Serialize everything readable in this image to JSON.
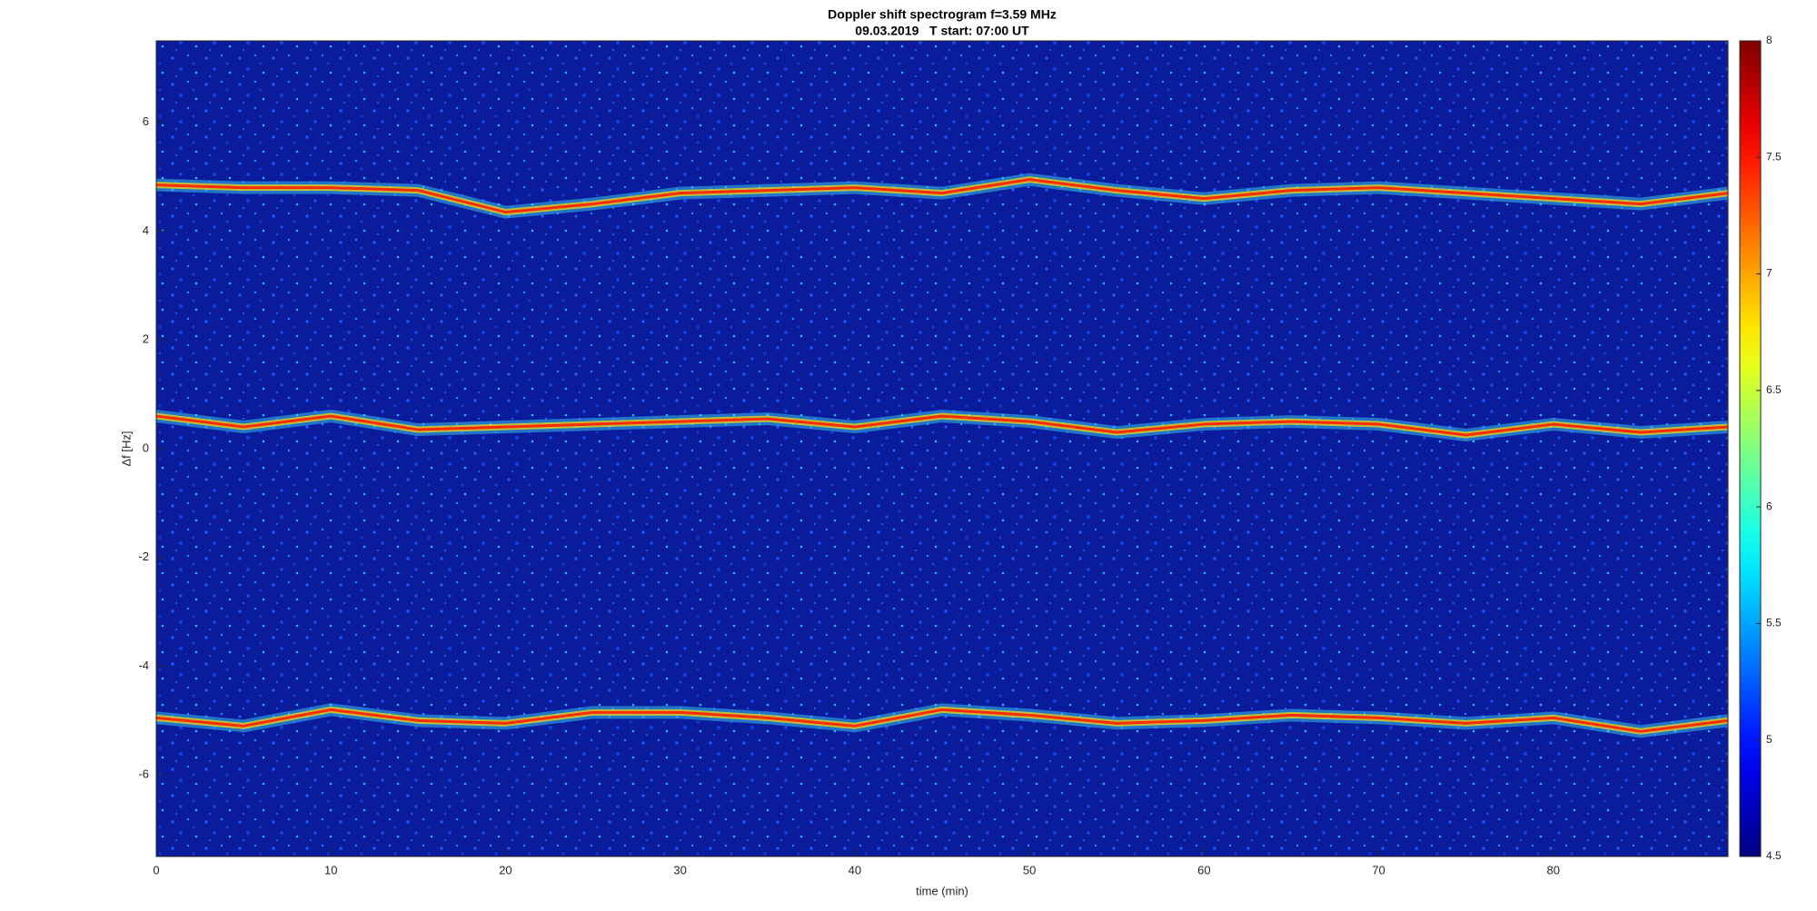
{
  "chart_data": {
    "type": "spectrogram",
    "title": "Doppler shift spectrogram f=3.59 MHz",
    "subtitle": "09.03.2019   T start: 07:00 UT",
    "xlabel": "time (min)",
    "ylabel": "Δf [Hz]",
    "x": [
      0,
      5,
      10,
      15,
      20,
      25,
      30,
      35,
      40,
      45,
      50,
      55,
      60,
      65,
      70,
      75,
      80,
      85,
      90
    ],
    "series": [
      {
        "color": "#ff2a00",
        "values": [
          4.85,
          4.8,
          4.8,
          4.75,
          4.35,
          4.5,
          4.7,
          4.75,
          4.8,
          4.7,
          4.95,
          4.75,
          4.6,
          4.75,
          4.8,
          4.7,
          4.6,
          4.5,
          4.7
        ]
      },
      {
        "color": "#ff2a00",
        "values": [
          0.6,
          0.4,
          0.6,
          0.35,
          0.4,
          0.45,
          0.5,
          0.55,
          0.4,
          0.6,
          0.5,
          0.3,
          0.45,
          0.5,
          0.45,
          0.25,
          0.45,
          0.3,
          0.4
        ]
      },
      {
        "color": "#ff2a00",
        "values": [
          -4.95,
          -5.1,
          -4.8,
          -5.0,
          -5.05,
          -4.85,
          -4.85,
          -4.95,
          -5.1,
          -4.8,
          -4.9,
          -5.05,
          -5.0,
          -4.9,
          -4.95,
          -5.05,
          -4.95,
          -5.2,
          -5.0
        ]
      }
    ],
    "xlim": [
      0,
      90
    ],
    "ylim": [
      -7.5,
      7.5
    ],
    "xticks": [
      0,
      10,
      20,
      30,
      40,
      50,
      60,
      70,
      80
    ],
    "yticks": [
      -6,
      -4,
      -2,
      0,
      2,
      4,
      6
    ],
    "colormap": "jet",
    "clim": [
      4.5,
      8
    ],
    "cticks": [
      4.5,
      5,
      5.5,
      6,
      6.5,
      7,
      7.5,
      8
    ]
  }
}
